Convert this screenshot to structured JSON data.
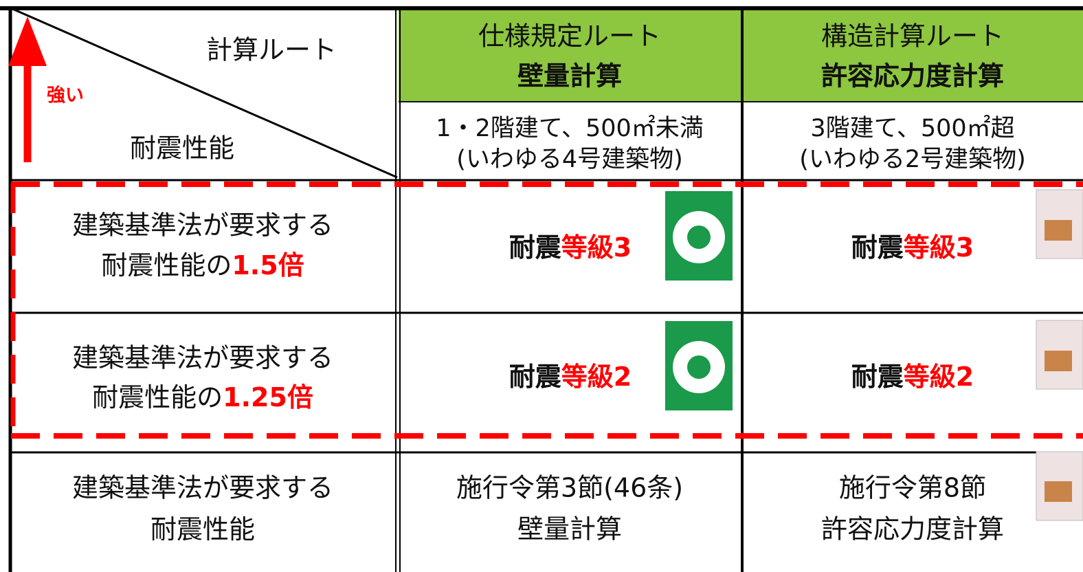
{
  "header": {
    "route_label": "計算ルート",
    "strength_label": "強い",
    "performance_label": "耐震性能",
    "columns": [
      {
        "title": "仕様規定ルート",
        "subtitle": "壁量計算",
        "scope": [
          "1・2階建て、500㎡未満",
          "(いわゆる4号建築物)"
        ]
      },
      {
        "title": "構造計算ルート",
        "subtitle": "許容応力度計算",
        "scope": [
          "3階建て、500㎡超",
          "(いわゆる2号建築物)"
        ]
      }
    ]
  },
  "rows": [
    {
      "line1": "建築基準法が要求する",
      "line2": "耐震性能の",
      "emphasis": "1.5倍",
      "cells": [
        {
          "prefix": "耐震",
          "grade": "等級3"
        },
        {
          "prefix": "耐震",
          "grade": "等級3"
        }
      ]
    },
    {
      "line1": "建築基準法が要求する",
      "line2": "耐震性能の",
      "emphasis": "1.25倍",
      "cells": [
        {
          "prefix": "耐震",
          "grade": "等級2"
        },
        {
          "prefix": "耐震",
          "grade": "等級2"
        }
      ]
    },
    {
      "line1": "建築基準法が要求する",
      "line2": "耐震性能",
      "cells": [
        {
          "lines": [
            "施行令第3節(46条)",
            "壁量計算"
          ]
        },
        {
          "lines": [
            "施行令第8節",
            "許容応力度計算"
          ]
        }
      ]
    }
  ]
}
